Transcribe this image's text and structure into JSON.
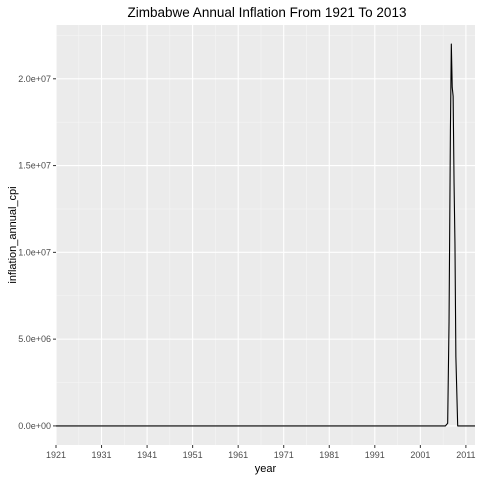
{
  "chart_data": {
    "type": "line",
    "title": "Zimbabwe Annual Inflation From 1921 To 2013",
    "xlabel": "year",
    "ylabel": "inflation_annual_cpi",
    "xlim": [
      1921,
      2013
    ],
    "ylim": [
      -1100000,
      23100000
    ],
    "x_ticks": [
      1921,
      1931,
      1941,
      1951,
      1961,
      1971,
      1981,
      1991,
      2001,
      2011
    ],
    "x_tick_labels": [
      "1921",
      "1931",
      "1941",
      "1951",
      "1961",
      "1971",
      "1981",
      "1991",
      "2001",
      "2011"
    ],
    "y_ticks": [
      0,
      5000000,
      10000000,
      15000000,
      20000000
    ],
    "y_tick_labels": [
      "0.0e+00",
      "5.0e+06",
      "1.0e+07",
      "1.5e+07",
      "2.0e+07"
    ],
    "grid": true,
    "background": "#ebebeb",
    "line_color": "#000000",
    "series": [
      {
        "x": [
          1921,
          1960,
          1980,
          2000,
          2005,
          2006.5,
          2007,
          2007.3,
          2007.6,
          2007.8,
          2008,
          2008.2,
          2008.4,
          2008.6,
          2008.8,
          2009,
          2009.2,
          2010,
          2013
        ],
        "values": [
          0,
          0,
          0,
          0,
          0,
          0,
          150000,
          6000000,
          17000000,
          22000000,
          19500000,
          19000000,
          14000000,
          10500000,
          4000000,
          2000000,
          0,
          0,
          0
        ]
      }
    ]
  }
}
